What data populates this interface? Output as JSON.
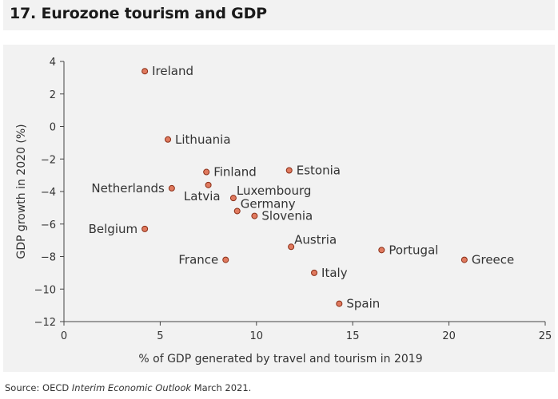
{
  "title": "17. Eurozone tourism and GDP",
  "source": {
    "prefix": "Source: OECD ",
    "publication": "Interim Economic Outlook",
    "suffix": " March 2021."
  },
  "colors": {
    "marker_fill": "#e07a5f",
    "marker_stroke": "#8b2e16",
    "background": "#f2f2f2",
    "text": "#333333"
  },
  "chart_data": {
    "type": "scatter",
    "title": "17. Eurozone tourism and GDP",
    "xlabel": "% of GDP generated by travel and tourism in 2019",
    "ylabel": "GDP growth in 2020 (%)",
    "xlim": [
      0,
      25
    ],
    "ylim": [
      -12,
      4
    ],
    "xticks": [
      0,
      5,
      10,
      15,
      20,
      25
    ],
    "yticks": [
      4,
      2,
      0,
      -2,
      -4,
      -6,
      -8,
      -10,
      -12
    ],
    "grid": false,
    "legend": "none",
    "points": [
      {
        "label": "Ireland",
        "x": 4.2,
        "y": 3.4,
        "side": "right"
      },
      {
        "label": "Lithuania",
        "x": 5.4,
        "y": -0.8,
        "side": "right"
      },
      {
        "label": "Finland",
        "x": 7.4,
        "y": -2.8,
        "side": "right"
      },
      {
        "label": "Estonia",
        "x": 11.7,
        "y": -2.7,
        "side": "right"
      },
      {
        "label": "Netherlands",
        "x": 5.6,
        "y": -3.8,
        "side": "left"
      },
      {
        "label": "Latvia",
        "x": 7.5,
        "y": -3.6,
        "side": "below-left"
      },
      {
        "label": "Luxembourg",
        "x": 8.8,
        "y": -4.4,
        "side": "above-right"
      },
      {
        "label": "Germany",
        "x": 9.0,
        "y": -5.2,
        "side": "above-right"
      },
      {
        "label": "Slovenia",
        "x": 9.9,
        "y": -5.5,
        "side": "right"
      },
      {
        "label": "Belgium",
        "x": 4.2,
        "y": -6.3,
        "side": "left"
      },
      {
        "label": "Austria",
        "x": 11.8,
        "y": -7.4,
        "side": "above-right"
      },
      {
        "label": "France",
        "x": 8.4,
        "y": -8.2,
        "side": "left"
      },
      {
        "label": "Portugal",
        "x": 16.5,
        "y": -7.6,
        "side": "right"
      },
      {
        "label": "Greece",
        "x": 20.8,
        "y": -8.2,
        "side": "right"
      },
      {
        "label": "Italy",
        "x": 13.0,
        "y": -9.0,
        "side": "right"
      },
      {
        "label": "Spain",
        "x": 14.3,
        "y": -10.9,
        "side": "right"
      }
    ]
  }
}
